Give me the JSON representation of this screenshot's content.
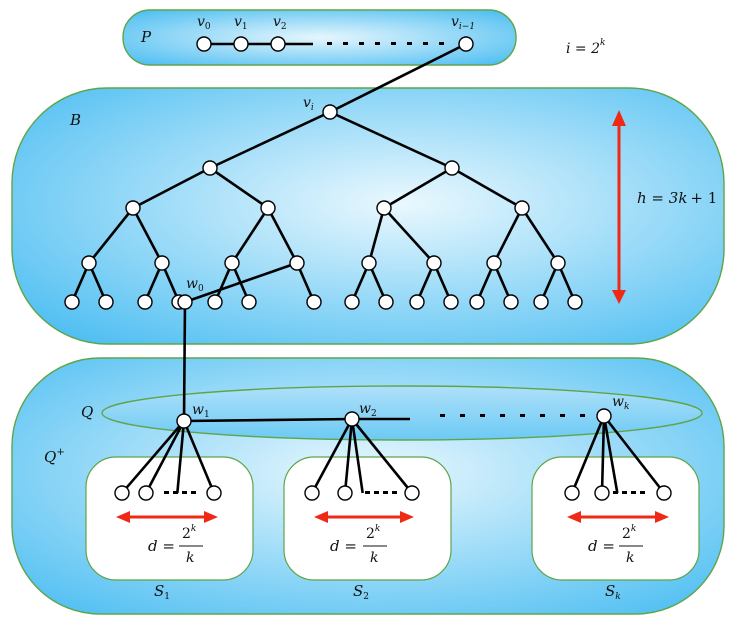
{
  "colors": {
    "region_light": "#e6f6fd",
    "region_dark": "#52c0f2",
    "region_border": "#5ea54a",
    "node_fill": "#ffffff",
    "edge": "#000000",
    "arrow": "#ee2a16"
  },
  "path_region": {
    "label": "P",
    "nodes": [
      "v",
      "v",
      "v",
      "v"
    ],
    "node_subscripts": [
      "0",
      "1",
      "2",
      "i−1"
    ],
    "note_lhs": "i = 2",
    "note_exp": "k"
  },
  "tree_region": {
    "label": "B",
    "root_label": "v",
    "root_sub": "i",
    "leaf_label": "w",
    "leaf_sub": "0",
    "height_lhs": "h = 3",
    "height_var": "k",
    "height_rhs": "+ 1"
  },
  "outer_region": {
    "label": "Q",
    "label_sup": "+"
  },
  "q_region": {
    "label": "Q",
    "hubs": [
      {
        "label": "w",
        "sub": "1"
      },
      {
        "label": "w",
        "sub": "2"
      },
      {
        "label": "w",
        "sub": "k"
      }
    ]
  },
  "subsets": [
    {
      "label": "S",
      "sub": "1",
      "dist_lhs": "d =",
      "num": "2",
      "num_exp": "k",
      "den": "k"
    },
    {
      "label": "S",
      "sub": "2",
      "dist_lhs": "d =",
      "num": "2",
      "num_exp": "k",
      "den": "k"
    },
    {
      "label": "S",
      "sub": "k",
      "dist_lhs": "d =",
      "num": "2",
      "num_exp": "k",
      "den": "k"
    }
  ]
}
